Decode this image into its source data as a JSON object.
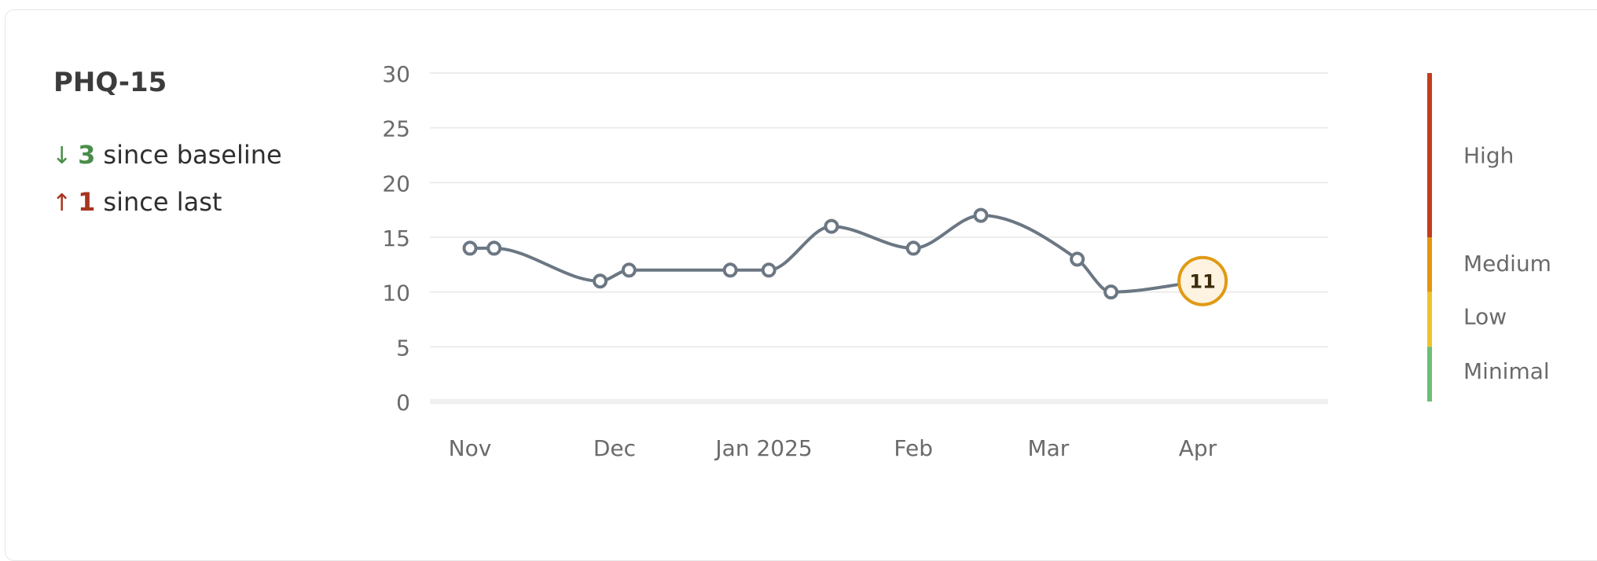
{
  "card": {
    "title": "PHQ-15",
    "since_baseline": {
      "arrow": "↓",
      "value": "3",
      "label": "since baseline"
    },
    "since_last": {
      "arrow": "↑",
      "value": "1",
      "label": "since last"
    }
  },
  "colors": {
    "line": "#6b7783",
    "grid": "#ececec",
    "baseline": "#f0f0f0",
    "axis_text": "#6a6a6a",
    "highlight_stroke": "#e09a14",
    "highlight_fill": "#fdf3e0",
    "down": "#4a8d4a",
    "up": "#a8351e"
  },
  "chart_data": {
    "type": "line",
    "title": "",
    "xlabel": "",
    "ylabel": "",
    "ylim": [
      0,
      30
    ],
    "y_ticks": [
      "30",
      "25",
      "20",
      "15",
      "10",
      "5",
      "0"
    ],
    "x_ticks": [
      "Nov",
      "Dec",
      "Jan 2025",
      "Feb",
      "Mar",
      "Apr"
    ],
    "grid": true,
    "points": [
      {
        "x": "2024-11-01",
        "y": 14
      },
      {
        "x": "2024-11-06",
        "y": 14
      },
      {
        "x": "2024-11-28",
        "y": 11
      },
      {
        "x": "2024-12-04",
        "y": 12
      },
      {
        "x": "2024-12-25",
        "y": 12
      },
      {
        "x": "2025-01-02",
        "y": 12
      },
      {
        "x": "2025-01-15",
        "y": 16
      },
      {
        "x": "2025-02-01",
        "y": 14
      },
      {
        "x": "2025-02-15",
        "y": 17
      },
      {
        "x": "2025-03-07",
        "y": 13
      },
      {
        "x": "2025-03-14",
        "y": 10
      },
      {
        "x": "2025-04-02",
        "y": 11,
        "highlight": true,
        "label": "11"
      }
    ],
    "severity_bands": [
      {
        "label": "High",
        "from": 15,
        "to": 30,
        "color": "#c53b1c"
      },
      {
        "label": "Medium",
        "from": 10,
        "to": 15,
        "color": "#e2960f"
      },
      {
        "label": "Low",
        "from": 5,
        "to": 10,
        "color": "#efc22a"
      },
      {
        "label": "Minimal",
        "from": 0,
        "to": 5,
        "color": "#6bbf72"
      }
    ]
  }
}
